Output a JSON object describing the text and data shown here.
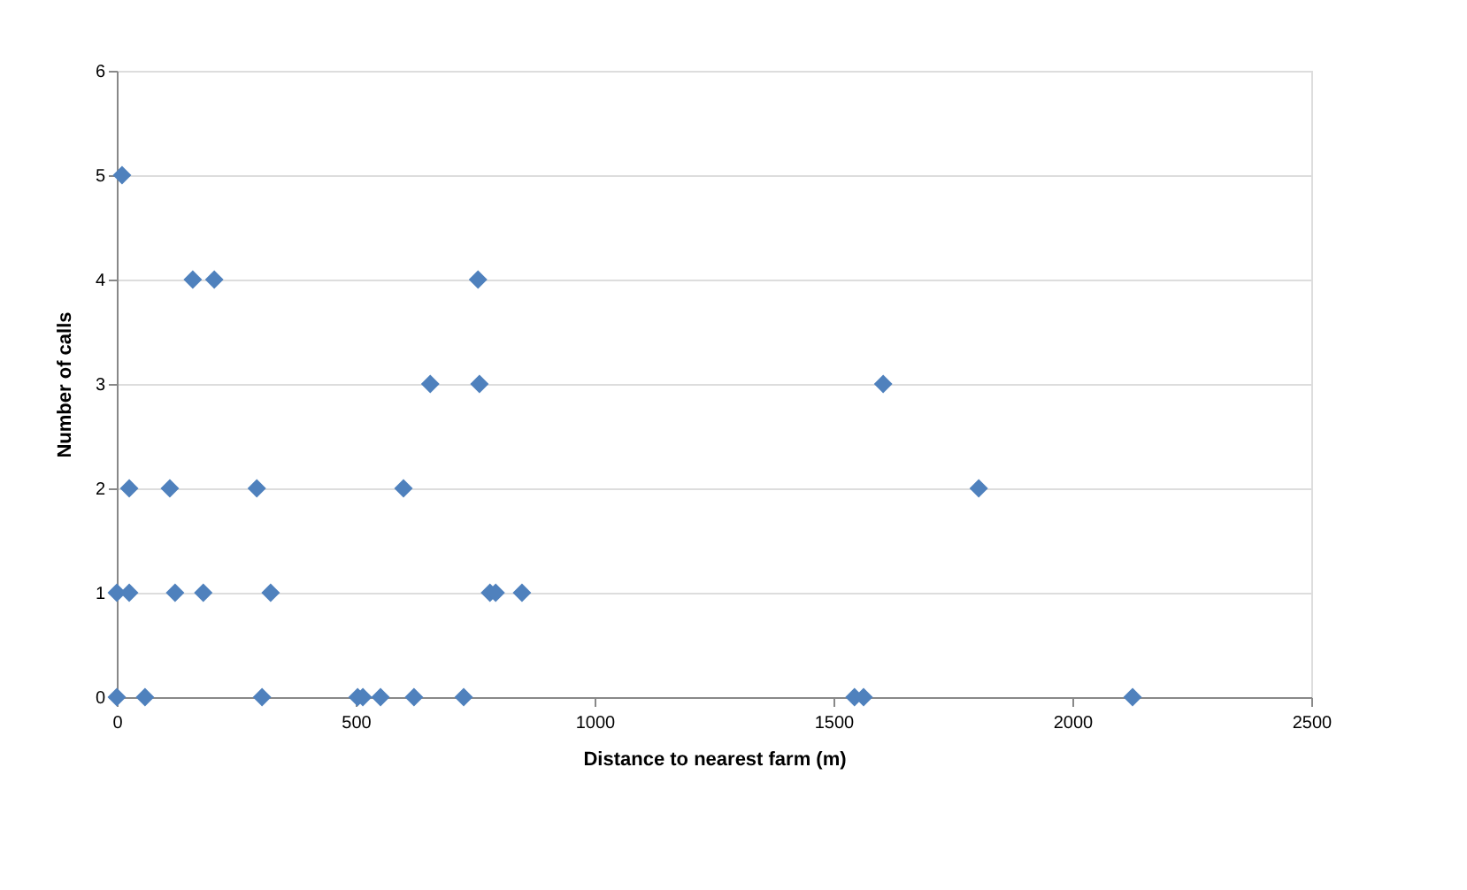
{
  "chart_data": {
    "type": "scatter",
    "xlabel": "Distance to nearest farm (m)",
    "ylabel": "Number of calls",
    "x": [
      11,
      159,
      204,
      756,
      656,
      759,
      1604,
      26,
      111,
      293,
      600,
      1804,
      0,
      26,
      122,
      181,
      322,
      781,
      793,
      848,
      0,
      59,
      304,
      504,
      515,
      552,
      622,
      726,
      1544,
      1563,
      2126
    ],
    "series": [
      {
        "color": "#4f81bd",
        "values": [
          5,
          4,
          4,
          4,
          3,
          3,
          3,
          2,
          2,
          2,
          2,
          2,
          1,
          1,
          1,
          1,
          1,
          1,
          1,
          1,
          0,
          0,
          0,
          0,
          0,
          0,
          0,
          0,
          0,
          0,
          0
        ]
      }
    ],
    "xlim": [
      0,
      2500
    ],
    "xticks": [
      0,
      500,
      1000,
      1500,
      2000,
      2500
    ],
    "ylim": [
      0,
      6
    ],
    "yticks": [
      0,
      1,
      2,
      3,
      4,
      5,
      6
    ],
    "grid": "y",
    "marker": "diamond",
    "legend": false
  }
}
